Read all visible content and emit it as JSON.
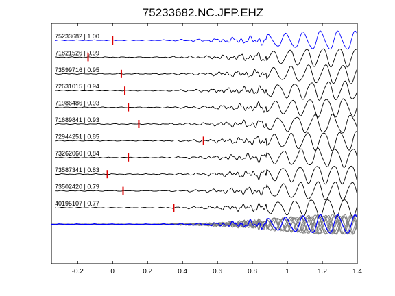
{
  "chart_data": {
    "type": "line",
    "title": "75233682.NC.JFP.EHZ",
    "xlabel": "",
    "ylabel": "",
    "xlim": [
      -0.35,
      1.4
    ],
    "x_ticks": [
      -0.2,
      0,
      0.2,
      0.4,
      0.6,
      0.8,
      1,
      1.2,
      1.4
    ],
    "x_tick_labels": [
      "-0.2",
      "0",
      "0.2",
      "0.4",
      "0.6",
      "0.8",
      "1",
      "1.2",
      "1.4"
    ],
    "grid": false,
    "colors": {
      "reference": "#0000ff",
      "trace": "#000000",
      "stack": "#808080",
      "pick": "#dd0000"
    },
    "traces": [
      {
        "label": "75233682 | 1.00",
        "id": "75233682",
        "cc": 1.0,
        "pick": 0.0,
        "color": "#0000ff"
      },
      {
        "label": "71821526 | 0.99",
        "id": "71821526",
        "cc": 0.99,
        "pick": -0.14,
        "color": "#000000"
      },
      {
        "label": "73599716 | 0.95",
        "id": "73599716",
        "cc": 0.95,
        "pick": 0.05,
        "color": "#000000"
      },
      {
        "label": "72631015 | 0.94",
        "id": "72631015",
        "cc": 0.94,
        "pick": 0.07,
        "color": "#000000"
      },
      {
        "label": "71986486 | 0.93",
        "id": "71986486",
        "cc": 0.93,
        "pick": 0.09,
        "color": "#000000"
      },
      {
        "label": "71689841 | 0.93",
        "id": "71689841",
        "cc": 0.93,
        "pick": 0.15,
        "color": "#000000"
      },
      {
        "label": "72944251 | 0.85",
        "id": "72944251",
        "cc": 0.85,
        "pick": 0.52,
        "color": "#000000"
      },
      {
        "label": "73262060 | 0.84",
        "id": "73262060",
        "cc": 0.84,
        "pick": 0.09,
        "color": "#000000"
      },
      {
        "label": "73587341 | 0.83",
        "id": "73587341",
        "cc": 0.83,
        "pick": -0.03,
        "color": "#000000"
      },
      {
        "label": "73502420 | 0.79",
        "id": "73502420",
        "cc": 0.79,
        "pick": 0.06,
        "color": "#000000"
      },
      {
        "label": "40195107 | 0.77",
        "id": "40195107",
        "cc": 0.77,
        "pick": 0.35,
        "color": "#000000"
      }
    ],
    "stack": {
      "label": "",
      "color": "#808080",
      "reference_color": "#0000ff"
    }
  }
}
